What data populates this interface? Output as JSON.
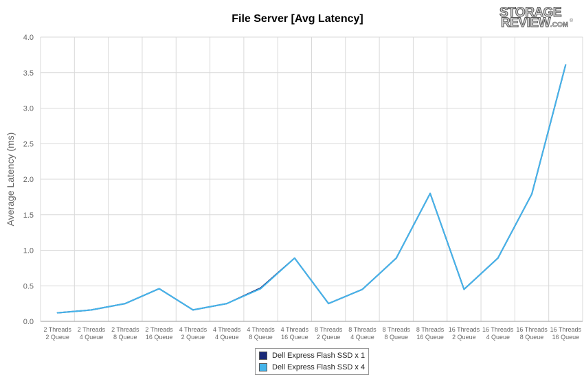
{
  "chart_data": {
    "type": "line",
    "title": "File Server [Avg Latency]",
    "xlabel": "",
    "ylabel": "Average Latency (ms)",
    "ylim": [
      0,
      4
    ],
    "yticks": [
      "0.0",
      "0.5",
      "1.0",
      "1.5",
      "2.0",
      "2.5",
      "3.0",
      "3.5",
      "4.0"
    ],
    "categories": [
      [
        "2 Threads",
        "2 Queue"
      ],
      [
        "2 Threads",
        "4 Queue"
      ],
      [
        "2 Threads",
        "8 Queue"
      ],
      [
        "2 Threads",
        "16 Queue"
      ],
      [
        "4 Threads",
        "2 Queue"
      ],
      [
        "4 Threads",
        "4 Queue"
      ],
      [
        "4 Threads",
        "8 Queue"
      ],
      [
        "4 Threads",
        "16 Queue"
      ],
      [
        "8 Threads",
        "2 Queue"
      ],
      [
        "8 Threads",
        "4 Queue"
      ],
      [
        "8 Threads",
        "8 Queue"
      ],
      [
        "8 Threads",
        "16 Queue"
      ],
      [
        "16 Threads",
        "2 Queue"
      ],
      [
        "16 Threads",
        "4 Queue"
      ],
      [
        "16 Threads",
        "8 Queue"
      ],
      [
        "16 Threads",
        "16 Queue"
      ]
    ],
    "series": [
      {
        "name": "Dell Express Flash SSD x 1",
        "color": "#1a2a78",
        "values": [
          0.12,
          0.16,
          0.25,
          0.46,
          0.16,
          0.25,
          0.47,
          0.89,
          0.25,
          0.45,
          0.89,
          1.8,
          0.45,
          0.89,
          1.79,
          3.61
        ]
      },
      {
        "name": "Dell Express Flash SSD x 4",
        "color": "#45b4ea",
        "values": [
          0.12,
          0.16,
          0.25,
          0.46,
          0.16,
          0.25,
          0.46,
          0.89,
          0.25,
          0.45,
          0.89,
          1.8,
          0.45,
          0.89,
          1.79,
          3.61
        ]
      }
    ],
    "grid": true,
    "legend_position": "bottom-center"
  },
  "logo": {
    "line1": "STORAGE",
    "line2": "REVIEW",
    "suffix": ".COM",
    "mark": "®"
  }
}
